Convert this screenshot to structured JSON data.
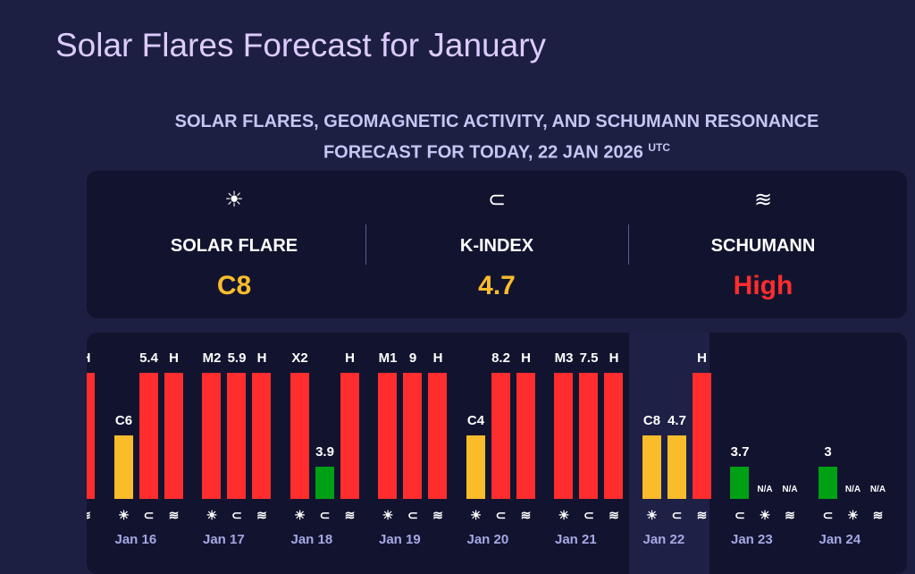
{
  "page_title": "Solar Flares Forecast for January",
  "subtitle": {
    "line1": "SOLAR FLARES, GEOMAGNETIC ACTIVITY, AND SCHUMANN RESONANCE",
    "line2": "FORECAST FOR TODAY, 22 JAN 2026",
    "tz": "UTC"
  },
  "today": {
    "solar": {
      "icon": "sun-icon",
      "glyph": "☀",
      "label": "SOLAR FLARE",
      "value": "C8",
      "color": "#fbbc2c"
    },
    "kindex": {
      "icon": "magnet-icon",
      "glyph": "🧲",
      "label": "K-INDEX",
      "value": "4.7",
      "color": "#fbbc2c"
    },
    "schumann": {
      "icon": "waves-icon",
      "glyph": "≋",
      "label": "SCHUMANN",
      "value": "High",
      "color": "#ff2d2d"
    }
  },
  "colors": {
    "high": "#ff2d2d",
    "medium": "#fbbc2c",
    "low": "#00a014"
  },
  "icons": {
    "solar": "☀",
    "kindex": "⊂",
    "schumann": "≋"
  },
  "days": [
    {
      "date": "",
      "bars": [
        {
          "type": "solar",
          "label": "",
          "level": "high"
        },
        {
          "type": "kindex",
          "label": "",
          "level": "high"
        },
        {
          "type": "schumann",
          "label": "H",
          "level": "high"
        }
      ]
    },
    {
      "date": "Jan 16",
      "bars": [
        {
          "type": "solar",
          "label": "C6",
          "level": "medium"
        },
        {
          "type": "kindex",
          "label": "5.4",
          "level": "high"
        },
        {
          "type": "schumann",
          "label": "H",
          "level": "high"
        }
      ]
    },
    {
      "date": "Jan 17",
      "bars": [
        {
          "type": "solar",
          "label": "M2",
          "level": "high"
        },
        {
          "type": "kindex",
          "label": "5.9",
          "level": "high"
        },
        {
          "type": "schumann",
          "label": "H",
          "level": "high"
        }
      ]
    },
    {
      "date": "Jan 18",
      "bars": [
        {
          "type": "solar",
          "label": "X2",
          "level": "high"
        },
        {
          "type": "kindex",
          "label": "3.9",
          "level": "low"
        },
        {
          "type": "schumann",
          "label": "H",
          "level": "high"
        }
      ]
    },
    {
      "date": "Jan 19",
      "bars": [
        {
          "type": "solar",
          "label": "M1",
          "level": "high"
        },
        {
          "type": "kindex",
          "label": "9",
          "level": "high"
        },
        {
          "type": "schumann",
          "label": "H",
          "level": "high"
        }
      ]
    },
    {
      "date": "Jan 20",
      "bars": [
        {
          "type": "solar",
          "label": "C4",
          "level": "medium"
        },
        {
          "type": "kindex",
          "label": "8.2",
          "level": "high"
        },
        {
          "type": "schumann",
          "label": "H",
          "level": "high"
        }
      ]
    },
    {
      "date": "Jan 21",
      "bars": [
        {
          "type": "solar",
          "label": "M3",
          "level": "high"
        },
        {
          "type": "kindex",
          "label": "7.5",
          "level": "high"
        },
        {
          "type": "schumann",
          "label": "H",
          "level": "high"
        }
      ]
    },
    {
      "date": "Jan 22",
      "today": true,
      "bars": [
        {
          "type": "solar",
          "label": "C8",
          "level": "medium"
        },
        {
          "type": "kindex",
          "label": "4.7",
          "level": "medium"
        },
        {
          "type": "schumann",
          "label": "H",
          "level": "high"
        }
      ]
    },
    {
      "date": "Jan 23",
      "bars": [
        {
          "type": "kindex",
          "label": "3.7",
          "level": "low"
        },
        {
          "type": "solar",
          "label": "N/A",
          "level": "none"
        },
        {
          "type": "schumann",
          "label": "N/A",
          "level": "none"
        }
      ]
    },
    {
      "date": "Jan 24",
      "bars": [
        {
          "type": "kindex",
          "label": "3",
          "level": "low"
        },
        {
          "type": "solar",
          "label": "N/A",
          "level": "none"
        },
        {
          "type": "schumann",
          "label": "N/A",
          "level": "none"
        }
      ]
    }
  ]
}
